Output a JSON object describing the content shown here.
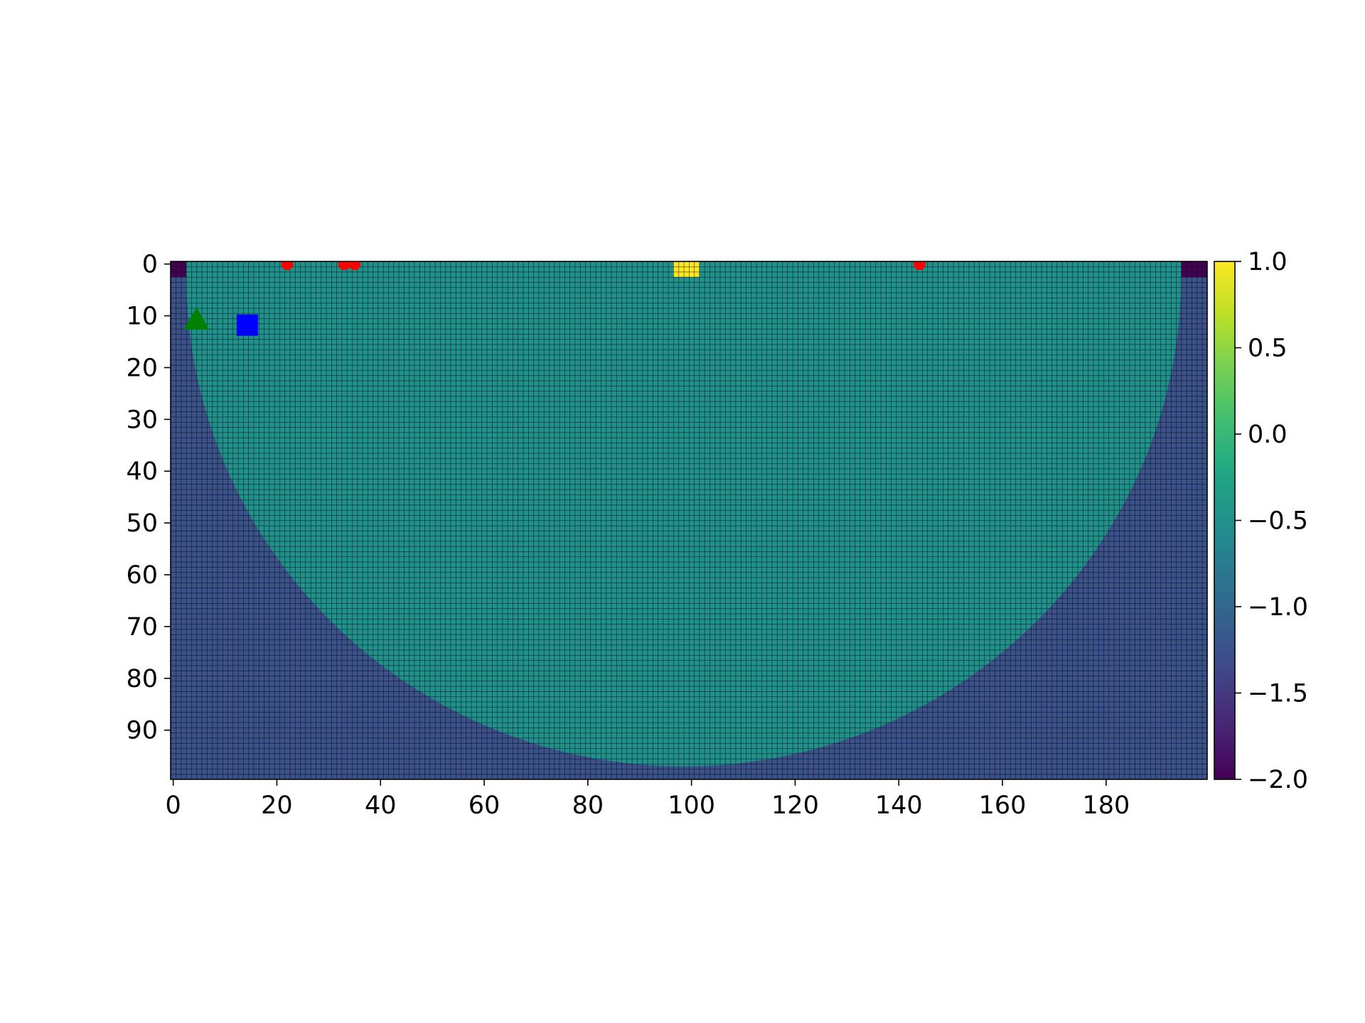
{
  "chart_data": {
    "type": "heatmap",
    "title": "",
    "xlabel": "",
    "ylabel": "",
    "grid_size": {
      "cols": 200,
      "rows": 100
    },
    "xlim": [
      -0.5,
      199.5
    ],
    "ylim": [
      99.5,
      -0.5
    ],
    "x_ticks": [
      0,
      20,
      40,
      60,
      80,
      100,
      120,
      140,
      160,
      180
    ],
    "y_ticks": [
      0,
      10,
      20,
      30,
      40,
      50,
      60,
      70,
      80,
      90
    ],
    "colormap": "viridis",
    "colorbar": {
      "vmin": -2.0,
      "vmax": 1.0,
      "ticks": [
        1.0,
        0.5,
        0.0,
        -0.5,
        -1.0,
        -1.5,
        -2.0
      ],
      "tick_labels": [
        "1.0",
        "0.5",
        "0.0",
        "−0.5",
        "−1.0",
        "−1.5",
        "−2.0"
      ]
    },
    "regions": [
      {
        "name": "background",
        "value": -1.0,
        "color": "#3b528b"
      },
      {
        "name": "top-band",
        "value": -2.0,
        "rows": [
          0,
          2
        ],
        "cols": [
          0,
          199
        ],
        "color": "#440154"
      },
      {
        "name": "half-disc",
        "value": 0.0,
        "center": [
          98.5,
          2
        ],
        "radius_x": 96,
        "radius_y": 95,
        "color": "#21918c"
      },
      {
        "name": "goal-cells",
        "value": 1.0,
        "rows": [
          0,
          2
        ],
        "cols": [
          97,
          101
        ],
        "color": "#fde725"
      }
    ],
    "markers": [
      {
        "shape": "circle",
        "color": "#ff0000",
        "points": [
          [
            22,
            0
          ],
          [
            33,
            0
          ],
          [
            35,
            0
          ],
          [
            144,
            0
          ]
        ]
      },
      {
        "shape": "triangle",
        "color": "#008000",
        "points": [
          [
            4.5,
            10.8
          ]
        ]
      },
      {
        "shape": "square",
        "color": "#0000ff",
        "points": [
          [
            14.3,
            11.8
          ]
        ]
      }
    ],
    "cell_edge_color": "#000000"
  }
}
